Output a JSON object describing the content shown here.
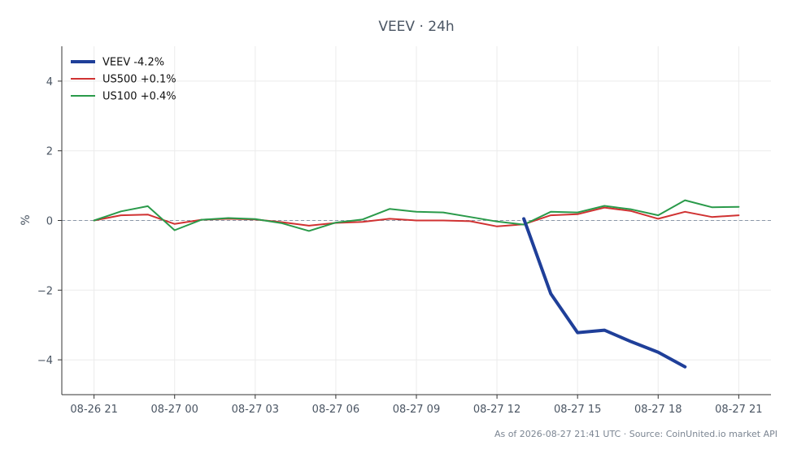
{
  "chart_data": {
    "type": "line",
    "title": "VEEV · 24h",
    "ylabel": "%",
    "xlabel": "",
    "ylim": [
      -5,
      5
    ],
    "yticks": [
      4,
      2,
      0,
      -2,
      -4
    ],
    "ytick_labels": [
      "4",
      "2",
      "0",
      "−2",
      "−4"
    ],
    "xticks": [
      {
        "pos": 0,
        "label": "08-26 21"
      },
      {
        "pos": 3,
        "label": "08-27 00"
      },
      {
        "pos": 6,
        "label": "08-27 03"
      },
      {
        "pos": 9,
        "label": "08-27 06"
      },
      {
        "pos": 12,
        "label": "08-27 09"
      },
      {
        "pos": 15,
        "label": "08-27 12"
      },
      {
        "pos": 18,
        "label": "08-27 15"
      },
      {
        "pos": 21,
        "label": "08-27 18"
      },
      {
        "pos": 24,
        "label": "08-27 21"
      }
    ],
    "xlim": [
      -1.2,
      25.2
    ],
    "grid": true,
    "zero_line": true,
    "legend_position": "top-left",
    "series": [
      {
        "name": "VEEV -4.2%",
        "color": "#1f3f99",
        "x": [
          16,
          17,
          18,
          19,
          20,
          21,
          22
        ],
        "y": [
          0.05,
          -2.1,
          -3.22,
          -3.15,
          -3.48,
          -3.78,
          -4.2
        ]
      },
      {
        "name": "US500 +0.1%",
        "color": "#d03232",
        "x": [
          0,
          1,
          2,
          3,
          4,
          5,
          6,
          7,
          8,
          9,
          10,
          11,
          12,
          13,
          14,
          15,
          16,
          17,
          18,
          19,
          20,
          21,
          22,
          23,
          24
        ],
        "y": [
          0.0,
          0.15,
          0.17,
          -0.1,
          0.02,
          0.05,
          0.03,
          -0.05,
          -0.15,
          -0.07,
          -0.04,
          0.05,
          0.0,
          0.0,
          -0.02,
          -0.17,
          -0.11,
          0.15,
          0.18,
          0.37,
          0.27,
          0.05,
          0.25,
          0.1,
          0.15
        ]
      },
      {
        "name": "US100 +0.4%",
        "color": "#2a9a4a",
        "x": [
          0,
          1,
          2,
          3,
          4,
          5,
          6,
          7,
          8,
          9,
          10,
          11,
          12,
          13,
          14,
          15,
          16,
          17,
          18,
          19,
          20,
          21,
          22,
          23,
          24
        ],
        "y": [
          0.0,
          0.26,
          0.41,
          -0.28,
          0.02,
          0.07,
          0.04,
          -0.08,
          -0.3,
          -0.06,
          0.03,
          0.33,
          0.25,
          0.23,
          0.1,
          -0.03,
          -0.12,
          0.25,
          0.23,
          0.42,
          0.32,
          0.15,
          0.58,
          0.38,
          0.39
        ]
      }
    ]
  },
  "footer": {
    "text": "As of 2026-08-27 21:41 UTC · Source: CoinUnited.io market API"
  }
}
